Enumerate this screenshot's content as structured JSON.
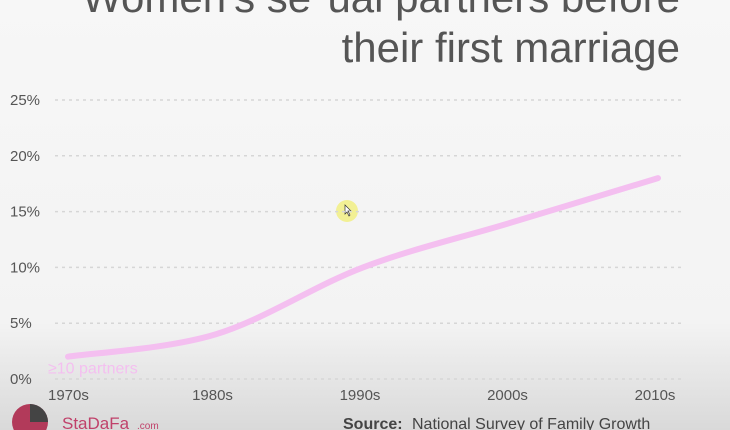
{
  "chart_data": {
    "type": "line",
    "title": [
      "Women's se*ual partners before",
      "their first marriage"
    ],
    "categories": [
      "1970s",
      "1980s",
      "1990s",
      "2000s",
      "2010s"
    ],
    "series": [
      {
        "name": "≥10 partners",
        "color": "#f4bff0",
        "values": [
          2,
          4,
          10,
          14,
          18
        ]
      }
    ],
    "ylim": [
      0,
      25
    ],
    "yticks": [
      {
        "value": 0,
        "label": "0%"
      },
      {
        "value": 5,
        "label": "5%"
      },
      {
        "value": 10,
        "label": "10%"
      },
      {
        "value": 15,
        "label": "15%"
      },
      {
        "value": 20,
        "label": "20%"
      },
      {
        "value": 25,
        "label": "25%"
      }
    ],
    "grid": true,
    "source_label": "Source:",
    "source": "National Survey of Family Growth",
    "logo": "StaDaFa",
    "logo_suffix": ".com"
  }
}
